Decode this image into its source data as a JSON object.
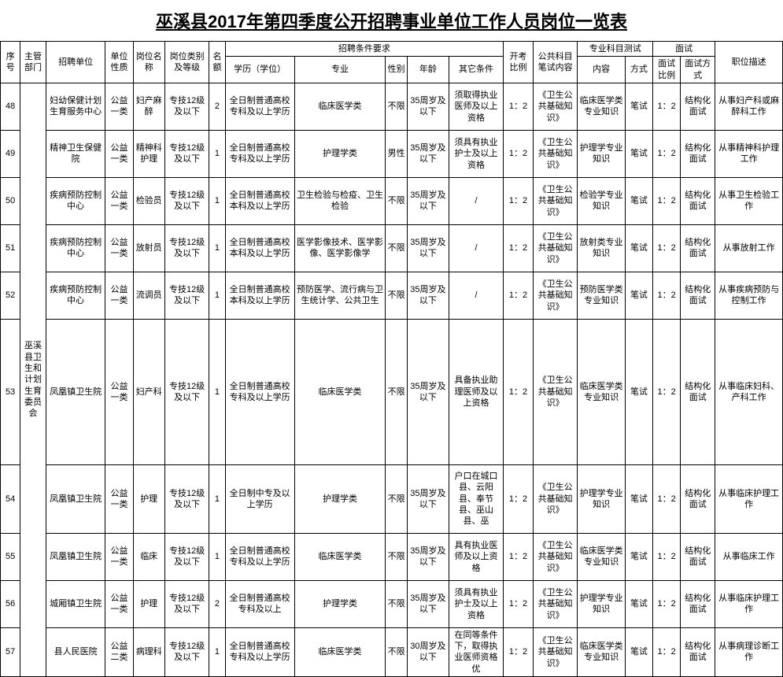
{
  "title": "巫溪县2017年第四季度公开招聘事业单位工作人员岗位一览表",
  "headers": {
    "seq": "序号",
    "dept": "主管部门",
    "unit": "招聘单位",
    "nature": "单位性质",
    "post": "岗位名称",
    "level": "岗位类别及等级",
    "quota": "名额",
    "cond_group": "招聘条件要求",
    "edu": "学历（学位）",
    "major": "专业",
    "sex": "性别",
    "age": "年龄",
    "other": "其它条件",
    "ratio": "开考比例",
    "public_exam": "公共科目笔试内容",
    "prof_group": "专业科目测试",
    "prof_content": "内容",
    "prof_method": "方式",
    "interview_group": "面试",
    "interview_ratio": "面试比例",
    "interview_format": "面试方式",
    "desc": "职位描述"
  },
  "dept_merged": "巫溪县卫生和计划生育委员会",
  "rows": [
    {
      "seq": "48",
      "unit": "妇幼保健计划生育服务中心",
      "nature": "公益一类",
      "post": "妇产麻醉",
      "level": "专技12级及以下",
      "quota": "2",
      "edu": "全日制普通高校专科及以上学历",
      "major": "临床医学类",
      "sex": "不限",
      "age": "35周岁及以下",
      "other": "须取得执业医师及以上资格",
      "ratio": "1：2",
      "public": "《卫生公共基础知识》",
      "prof": "临床医学类专业知识",
      "method": "笔试",
      "iratio": "1：2",
      "iformat": "结构化面试",
      "desc": "从事妇产科或麻醉科工作",
      "rowClass": "norm-row"
    },
    {
      "seq": "49",
      "unit": "精神卫生保健院",
      "nature": "公益一类",
      "post": "精神科护理",
      "level": "专技12级及以下",
      "quota": "1",
      "edu": "全日制普通高校专科及以上学历",
      "major": "护理学类",
      "sex": "男性",
      "age": "35周岁及以下",
      "other": "须具有执业护士及以上资格",
      "ratio": "1：2",
      "public": "《卫生公共基础知识》",
      "prof": "护理学专业知识",
      "method": "笔试",
      "iratio": "1：2",
      "iformat": "结构化面试",
      "desc": "从事精神科护理工作",
      "rowClass": "norm-row"
    },
    {
      "seq": "50",
      "unit": "疾病预防控制中心",
      "nature": "公益一类",
      "post": "检验员",
      "level": "专技12级及以下",
      "quota": "1",
      "edu": "全日制普通高校本科及以上学历",
      "major": "卫生检验与检疫、卫生检验",
      "sex": "不限",
      "age": "35周岁及以下",
      "other": "/",
      "ratio": "1：2",
      "public": "《卫生公共基础知识》",
      "prof": "检验学专业知识",
      "method": "笔试",
      "iratio": "1：2",
      "iformat": "结构化面试",
      "desc": "从事卫生检验工作",
      "rowClass": "norm-row"
    },
    {
      "seq": "51",
      "unit": "疾病预防控制中心",
      "nature": "公益一类",
      "post": "放射员",
      "level": "专技12级及以下",
      "quota": "1",
      "edu": "全日制普通高校本科及以上学历",
      "major": "医学影像技术、医学影像、医学影像学",
      "sex": "不限",
      "age": "35周岁及以下",
      "other": "/",
      "ratio": "1：2",
      "public": "《卫生公共基础知识》",
      "prof": "放射类专业知识",
      "method": "笔试",
      "iratio": "1：2",
      "iformat": "结构化面试",
      "desc": "从事放射工作",
      "rowClass": "norm-row"
    },
    {
      "seq": "52",
      "unit": "疾病预防控制中心",
      "nature": "公益一类",
      "post": "流调员",
      "level": "专技12级及以下",
      "quota": "1",
      "edu": "全日制普通高校本科及以上学历",
      "major": "预防医学、流行病与卫生统计学、公共卫生",
      "sex": "不限",
      "age": "35周岁及以下",
      "other": "/",
      "ratio": "1：2",
      "public": "《卫生公共基础知识》",
      "prof": "预防医学类专业知识",
      "method": "笔试",
      "iratio": "1：2",
      "iformat": "结构化面试",
      "desc": "从事疾病预防与控制工作",
      "rowClass": "norm-row"
    },
    {
      "seq": "53",
      "unit": "凤凰镇卫生院",
      "nature": "公益一类",
      "post": "妇产科",
      "level": "专技12级及以下",
      "quota": "1",
      "edu": "全日制普通高校专科及以上学历",
      "major": "临床医学类",
      "sex": "不限",
      "age": "35周岁及以下",
      "other": "具备执业助理医师及以上资格",
      "ratio": "1：2",
      "public": "《卫生公共基础知识》",
      "prof": "临床医学类专业知识",
      "method": "笔试",
      "iratio": "1：2",
      "iformat": "结构化面试",
      "desc": "从事临床妇科、产科工作",
      "rowClass": "tall-row"
    },
    {
      "seq": "54",
      "unit": "凤凰镇卫生院",
      "nature": "公益一类",
      "post": "护理",
      "level": "专技12级及以下",
      "quota": "1",
      "edu": "全日制中专及以上学历",
      "major": "护理学类",
      "sex": "不限",
      "age": "35周岁及以下",
      "other": "户口在城口县、云阳县、奉节县、巫山县、巫",
      "ratio": "1：2",
      "public": "《卫生公共基础知识》",
      "prof": "护理学专业知识",
      "method": "笔试",
      "iratio": "1：2",
      "iformat": "结构化面试",
      "desc": "从事临床护理工作",
      "rowClass": "med-row"
    },
    {
      "seq": "55",
      "unit": "凤凰镇卫生院",
      "nature": "公益一类",
      "post": "临床",
      "level": "专技12级及以下",
      "quota": "1",
      "edu": "全日制普通高校专科及以上学历",
      "major": "临床医学类",
      "sex": "不限",
      "age": "35周岁及以下",
      "other": "具有执业医师及以上资格",
      "ratio": "1：2",
      "public": "《卫生公共基础知识》",
      "prof": "临床医学类专业知识",
      "method": "笔试",
      "iratio": "1：2",
      "iformat": "结构化面试",
      "desc": "从事临床工作",
      "rowClass": "norm-row"
    },
    {
      "seq": "56",
      "unit": "城厢镇卫生院",
      "nature": "公益一类",
      "post": "护理",
      "level": "专技12级及以下",
      "quota": "2",
      "edu": "全日制普通高校专科及以上",
      "major": "护理学类",
      "sex": "不限",
      "age": "35周岁及以下",
      "other": "须具有执业护士及以上资格",
      "ratio": "1：2",
      "public": "《卫生公共基础知识》",
      "prof": "护理学专业知识",
      "method": "笔试",
      "iratio": "1：2",
      "iformat": "结构化面试",
      "desc": "从事临床护理工作",
      "rowClass": "norm-row"
    },
    {
      "seq": "57",
      "unit": "县人民医院",
      "nature": "公益二类",
      "post": "病理科",
      "level": "专技12级及以下",
      "quota": "1",
      "edu": "全日制普通高校专科及以上学历",
      "major": "临床医学类",
      "sex": "不限",
      "age": "30周岁及以下",
      "other": "在同等条件下，取得执业医师资格优",
      "ratio": "1：2",
      "public": "《卫生公共基础知识》",
      "prof": "临床医学类专业知识",
      "method": "笔试",
      "iratio": "1：2",
      "iformat": "结构化面试",
      "desc": "从事病理诊断工作",
      "rowClass": "norm-row"
    }
  ],
  "colors": {
    "border": "#000000",
    "bg": "#ffffff",
    "text": "#000000"
  }
}
